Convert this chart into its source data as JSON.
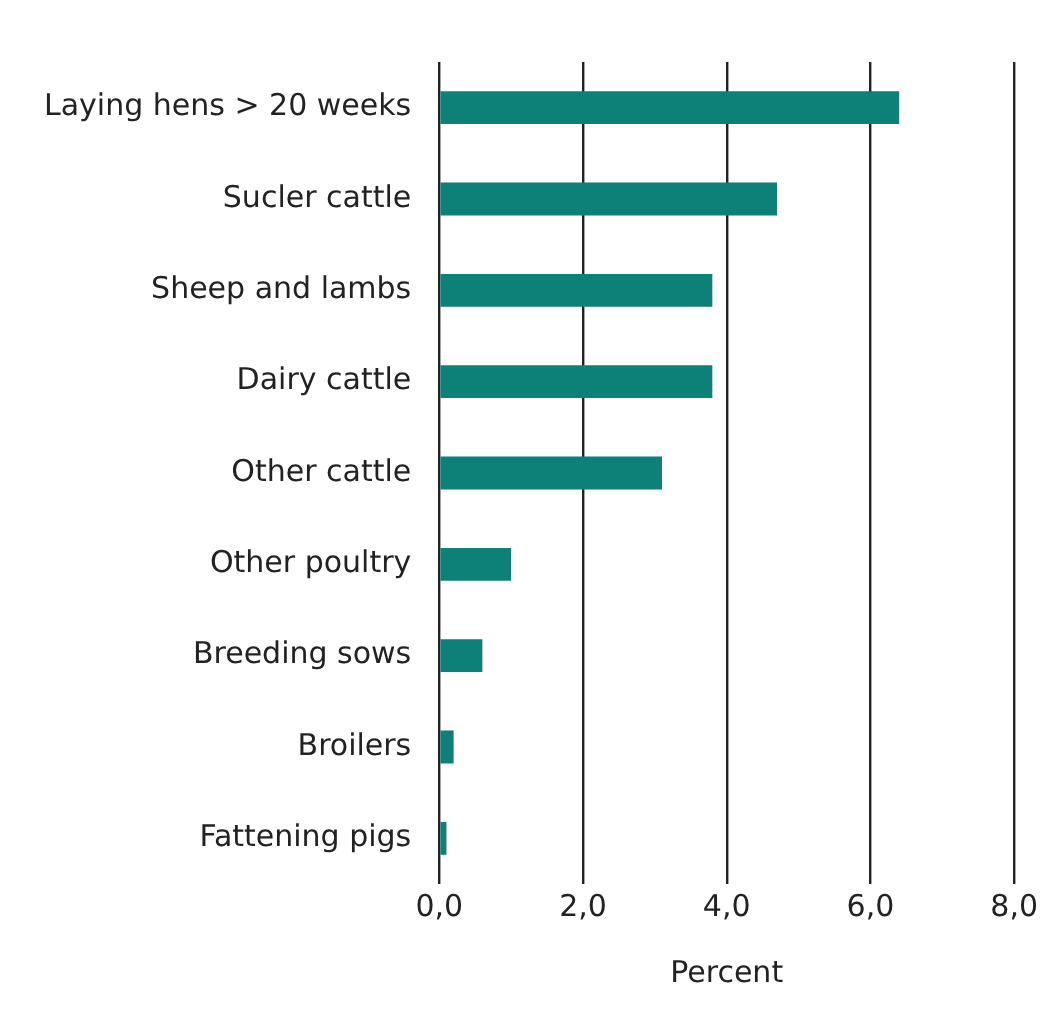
{
  "chart_data": {
    "type": "bar",
    "orientation": "horizontal",
    "xlabel": "Percent",
    "categories": [
      "Laying hens > 20 weeks",
      "Sucler cattle",
      "Sheep and lambs",
      "Dairy cattle",
      "Other cattle",
      "Other poultry",
      "Breeding sows",
      "Broilers",
      "Fattening pigs"
    ],
    "values": [
      6.4,
      4.7,
      3.8,
      3.8,
      3.1,
      1.0,
      0.6,
      0.2,
      0.1
    ],
    "color": "#0d8078",
    "xlim": [
      0,
      8
    ],
    "xticks": [
      {
        "value": 0,
        "label": "0,0"
      },
      {
        "value": 2,
        "label": "2,0"
      },
      {
        "value": 4,
        "label": "4,0"
      },
      {
        "value": 6,
        "label": "6,0"
      },
      {
        "value": 8,
        "label": "8,0"
      }
    ],
    "grid": "x"
  }
}
